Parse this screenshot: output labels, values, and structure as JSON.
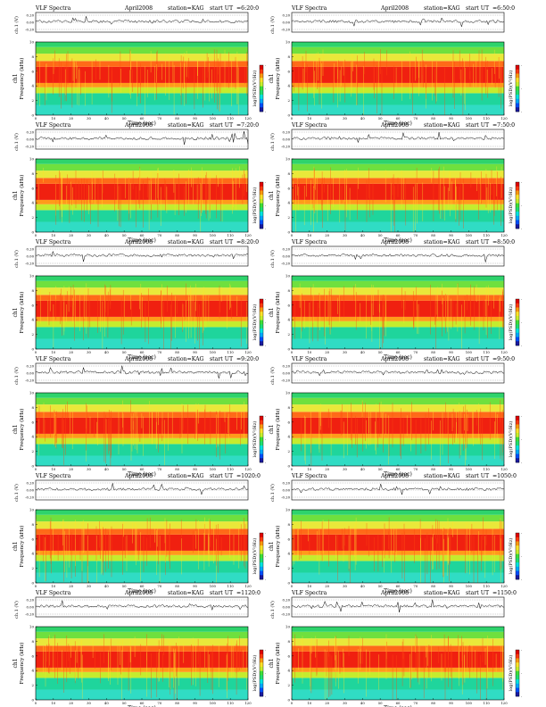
{
  "common": {
    "title_left": "VLF Spectra",
    "date": "April2008",
    "station": "station=KAG",
    "start_label": "start  UT"
  },
  "colors": {
    "colorbar": [
      "#1a1aa0",
      "#0050ff",
      "#00aaff",
      "#00e5e0",
      "#20e070",
      "#3fe03a",
      "#c9ef2b",
      "#ffe22a",
      "#ff9a10",
      "#ff3a10",
      "#e00000"
    ],
    "spectrogram_band": [
      "#30dcc4",
      "#1fd59c",
      "#c4ec2e",
      "#ff9b1a",
      "#f02010",
      "#ff6a18",
      "#e9e83a",
      "#6fe03e",
      "#2ed36c"
    ]
  },
  "chart_data": [
    {
      "type": "heatmap",
      "panel": "row1-left",
      "start_ut": "=6:20:0"
    },
    {
      "type": "heatmap",
      "panel": "row1-right",
      "start_ut": "=6:50:0"
    },
    {
      "type": "heatmap",
      "panel": "row2-left",
      "start_ut": "=7:20:0"
    },
    {
      "type": "heatmap",
      "panel": "row2-right",
      "start_ut": "=7:50:0"
    },
    {
      "type": "heatmap",
      "panel": "row3-left",
      "start_ut": "=8:20:0"
    },
    {
      "type": "heatmap",
      "panel": "row3-right",
      "start_ut": "=8:50:0"
    },
    {
      "type": "heatmap",
      "panel": "row4-left",
      "start_ut": "=9:20:0"
    },
    {
      "type": "heatmap",
      "panel": "row4-right",
      "start_ut": "=9:50:0"
    },
    {
      "type": "heatmap",
      "panel": "row5-left",
      "start_ut": "=1020:0"
    },
    {
      "type": "heatmap",
      "panel": "row5-right",
      "start_ut": "=1050:0"
    },
    {
      "type": "heatmap",
      "panel": "row6-left",
      "start_ut": "=1120:0"
    },
    {
      "type": "heatmap",
      "panel": "row6-right",
      "start_ut": "=1150:0"
    }
  ],
  "axes": {
    "x_label": "Time  (sec)",
    "x_ticks": [
      "0",
      "10",
      "20",
      "30",
      "40",
      "50",
      "60",
      "70",
      "80",
      "90",
      "100",
      "110",
      "120"
    ],
    "x_range": [
      0,
      120
    ],
    "y_label": "Frequency  (kHz)",
    "y_label_ch": "ch1",
    "y_ticks": [
      "0",
      "2",
      "4",
      "6",
      "8",
      "10"
    ],
    "y_range": [
      0,
      10
    ],
    "wave_label": "ch.1 (V)",
    "wave_ticks": [
      "0.20",
      "0.00",
      "-0.20"
    ],
    "colorbar_label": "log(PSD)(V²/Hz)",
    "colorbar_ticks": [
      "-",
      "-",
      "-"
    ]
  }
}
